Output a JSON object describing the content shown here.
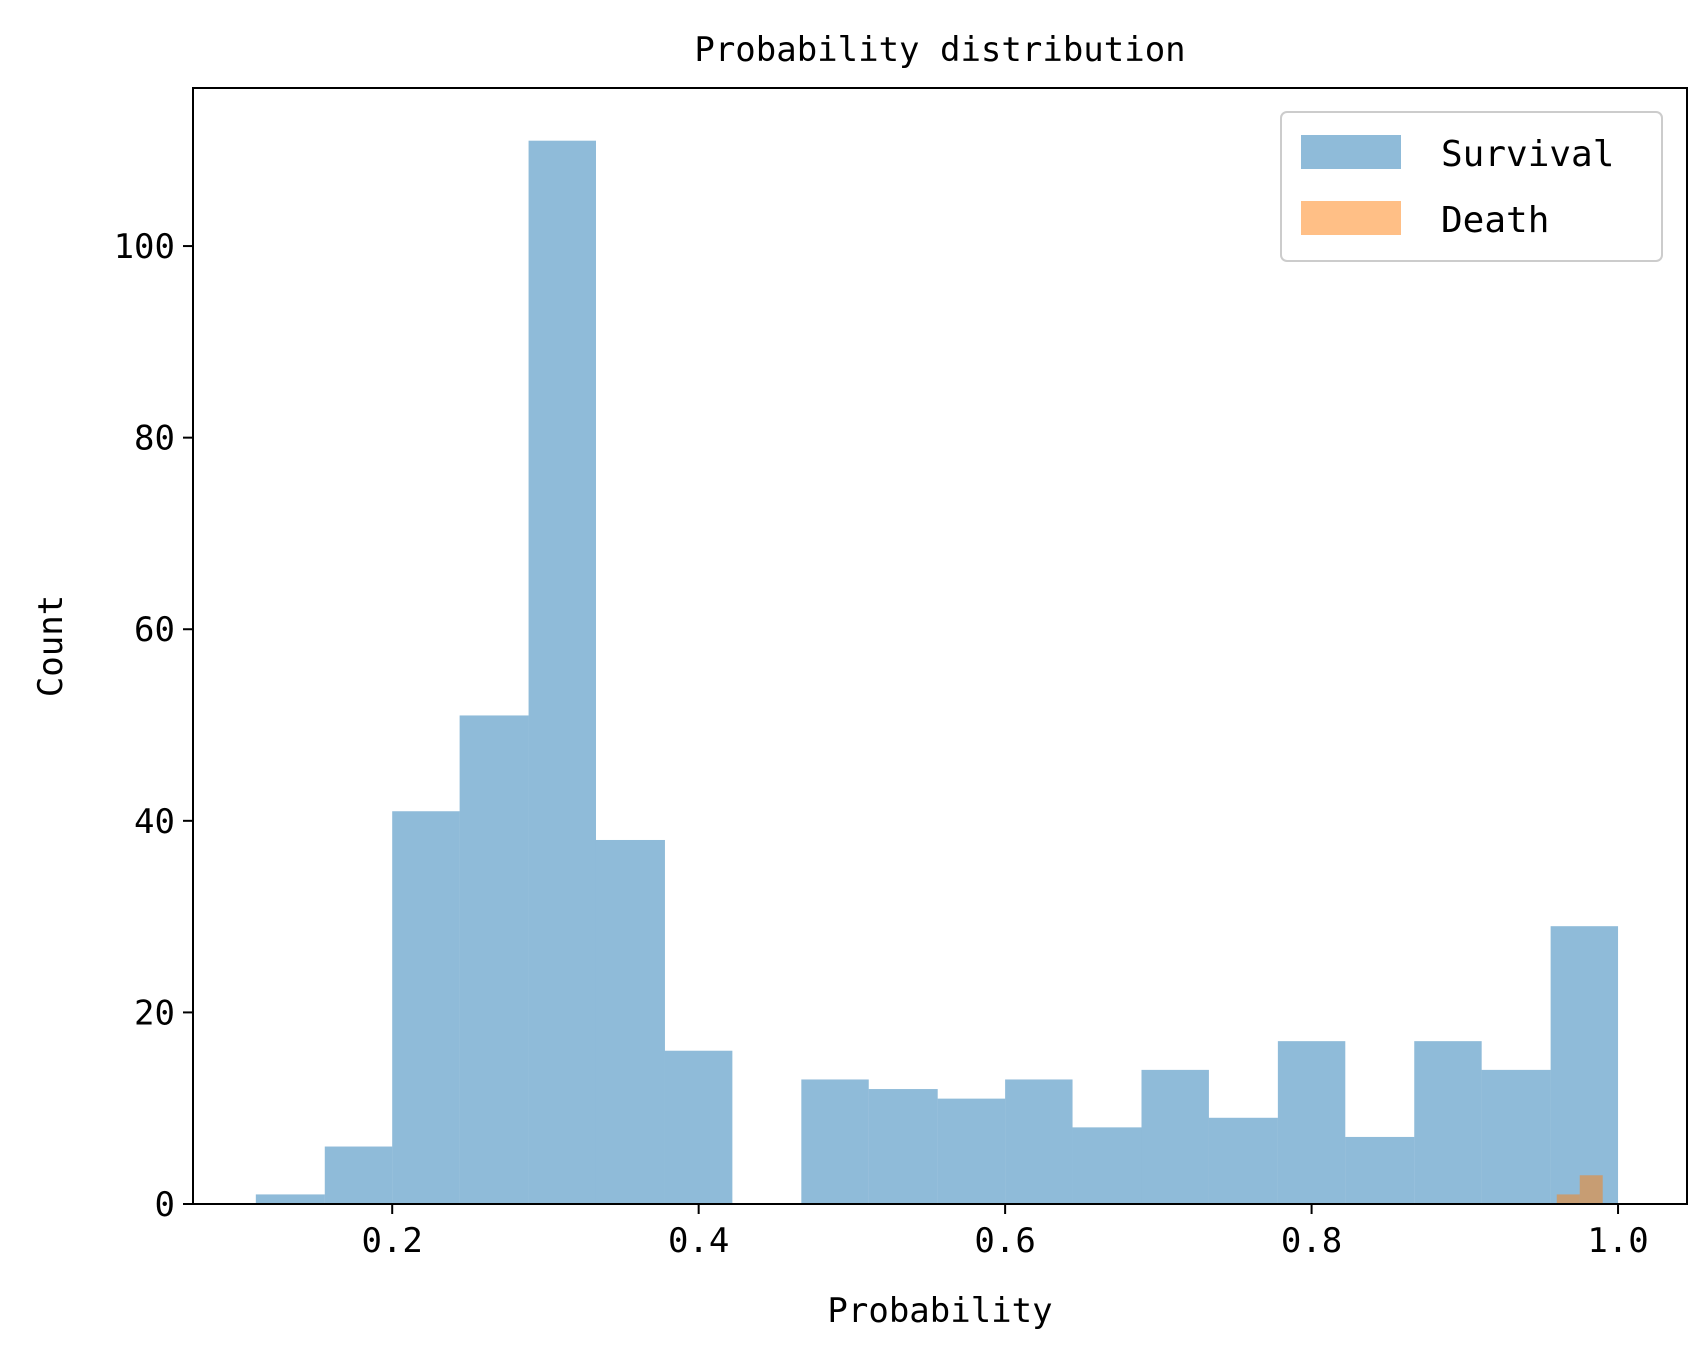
{
  "chart_data": {
    "type": "bar",
    "title": "Probability distribution",
    "xlabel": "Probability",
    "ylabel": "Count",
    "xlim": [
      0.07,
      1.045
    ],
    "ylim": [
      0,
      116.5
    ],
    "xticks": [
      "0.2",
      "0.4",
      "0.6",
      "0.8",
      "1.0"
    ],
    "yticks": [
      "0",
      "20",
      "40",
      "60",
      "80",
      "100"
    ],
    "legend_position": "top-right",
    "grid": false,
    "series": [
      {
        "name": "Survival",
        "color": "#1f77b4",
        "opacity": 0.5,
        "bins": [
          {
            "x0": 0.111,
            "x1": 0.156,
            "count": 1
          },
          {
            "x0": 0.156,
            "x1": 0.2,
            "count": 6
          },
          {
            "x0": 0.2,
            "x1": 0.244,
            "count": 41
          },
          {
            "x0": 0.244,
            "x1": 0.289,
            "count": 51
          },
          {
            "x0": 0.289,
            "x1": 0.333,
            "count": 111
          },
          {
            "x0": 0.333,
            "x1": 0.378,
            "count": 38
          },
          {
            "x0": 0.378,
            "x1": 0.422,
            "count": 16
          },
          {
            "x0": 0.422,
            "x1": 0.467,
            "count": 0
          },
          {
            "x0": 0.467,
            "x1": 0.511,
            "count": 13
          },
          {
            "x0": 0.511,
            "x1": 0.556,
            "count": 12
          },
          {
            "x0": 0.556,
            "x1": 0.6,
            "count": 11
          },
          {
            "x0": 0.6,
            "x1": 0.644,
            "count": 13
          },
          {
            "x0": 0.644,
            "x1": 0.689,
            "count": 8
          },
          {
            "x0": 0.689,
            "x1": 0.733,
            "count": 14
          },
          {
            "x0": 0.733,
            "x1": 0.778,
            "count": 9
          },
          {
            "x0": 0.778,
            "x1": 0.822,
            "count": 17
          },
          {
            "x0": 0.822,
            "x1": 0.867,
            "count": 7
          },
          {
            "x0": 0.867,
            "x1": 0.911,
            "count": 17
          },
          {
            "x0": 0.911,
            "x1": 0.956,
            "count": 14
          },
          {
            "x0": 0.956,
            "x1": 1.0,
            "count": 29
          }
        ]
      },
      {
        "name": "Death",
        "color": "#ff7f0e",
        "opacity": 0.5,
        "bins": [
          {
            "x0": 0.96,
            "x1": 0.975,
            "count": 1
          },
          {
            "x0": 0.975,
            "x1": 0.99,
            "count": 3
          }
        ]
      }
    ]
  }
}
